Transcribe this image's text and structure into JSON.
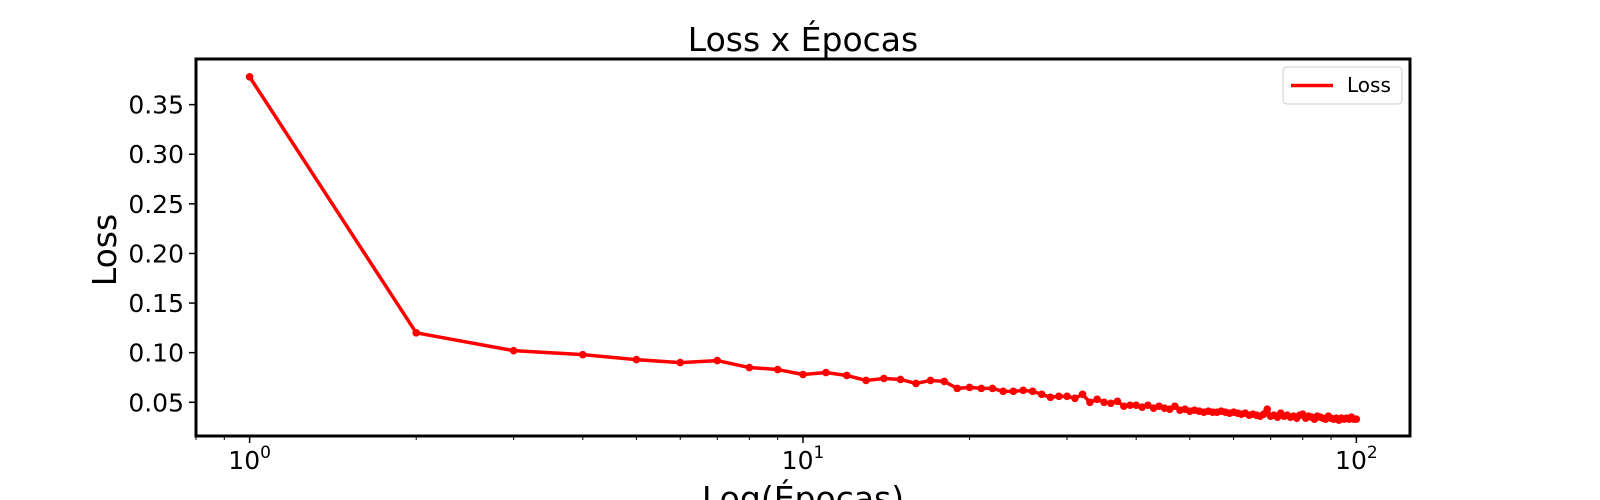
{
  "chart_data": {
    "type": "line",
    "title": "Loss x Épocas",
    "xlabel": "Log(Épocas)",
    "ylabel": "Loss",
    "xscale": "log",
    "xlim": [
      0.8,
      125
    ],
    "ylim": [
      0.016,
      0.396
    ],
    "xticks": [
      {
        "value": 1,
        "base": "10",
        "exp": "0"
      },
      {
        "value": 10,
        "base": "10",
        "exp": "1"
      },
      {
        "value": 100,
        "base": "10",
        "exp": "2"
      }
    ],
    "yticks": [
      {
        "value": 0.05,
        "label": "0.05"
      },
      {
        "value": 0.1,
        "label": "0.10"
      },
      {
        "value": 0.15,
        "label": "0.15"
      },
      {
        "value": 0.2,
        "label": "0.20"
      },
      {
        "value": 0.25,
        "label": "0.25"
      },
      {
        "value": 0.3,
        "label": "0.30"
      },
      {
        "value": 0.35,
        "label": "0.35"
      }
    ],
    "grid": false,
    "legend": {
      "position": "top-right",
      "entries": [
        {
          "label": "Loss",
          "color": "#ff0000"
        }
      ]
    },
    "series": [
      {
        "name": "Loss",
        "color": "#ff0000",
        "x": [
          1,
          2,
          3,
          4,
          5,
          6,
          7,
          8,
          9,
          10,
          11,
          12,
          13,
          14,
          15,
          16,
          17,
          18,
          19,
          20,
          21,
          22,
          23,
          24,
          25,
          26,
          27,
          28,
          29,
          30,
          31,
          32,
          33,
          34,
          35,
          36,
          37,
          38,
          39,
          40,
          41,
          42,
          43,
          44,
          45,
          46,
          47,
          48,
          49,
          50,
          51,
          52,
          53,
          54,
          55,
          56,
          57,
          58,
          59,
          60,
          61,
          62,
          63,
          64,
          65,
          66,
          67,
          68,
          69,
          70,
          71,
          72,
          73,
          74,
          75,
          76,
          77,
          78,
          79,
          80,
          81,
          82,
          83,
          84,
          85,
          86,
          87,
          88,
          89,
          90,
          91,
          92,
          93,
          94,
          95,
          96,
          97,
          98,
          99,
          100
        ],
        "values": [
          0.378,
          0.12,
          0.102,
          0.098,
          0.093,
          0.09,
          0.092,
          0.085,
          0.083,
          0.078,
          0.08,
          0.077,
          0.072,
          0.074,
          0.073,
          0.069,
          0.072,
          0.071,
          0.064,
          0.065,
          0.064,
          0.064,
          0.061,
          0.061,
          0.062,
          0.061,
          0.058,
          0.055,
          0.056,
          0.056,
          0.054,
          0.058,
          0.05,
          0.053,
          0.05,
          0.049,
          0.051,
          0.046,
          0.047,
          0.047,
          0.045,
          0.047,
          0.044,
          0.046,
          0.044,
          0.043,
          0.046,
          0.042,
          0.043,
          0.041,
          0.042,
          0.041,
          0.04,
          0.041,
          0.04,
          0.04,
          0.041,
          0.04,
          0.039,
          0.04,
          0.039,
          0.038,
          0.039,
          0.037,
          0.038,
          0.037,
          0.036,
          0.038,
          0.043,
          0.036,
          0.037,
          0.035,
          0.039,
          0.036,
          0.037,
          0.035,
          0.036,
          0.034,
          0.037,
          0.038,
          0.034,
          0.036,
          0.035,
          0.033,
          0.036,
          0.035,
          0.034,
          0.033,
          0.036,
          0.034,
          0.033,
          0.034,
          0.032,
          0.034,
          0.033,
          0.034,
          0.033,
          0.035,
          0.033,
          0.033
        ]
      }
    ]
  }
}
